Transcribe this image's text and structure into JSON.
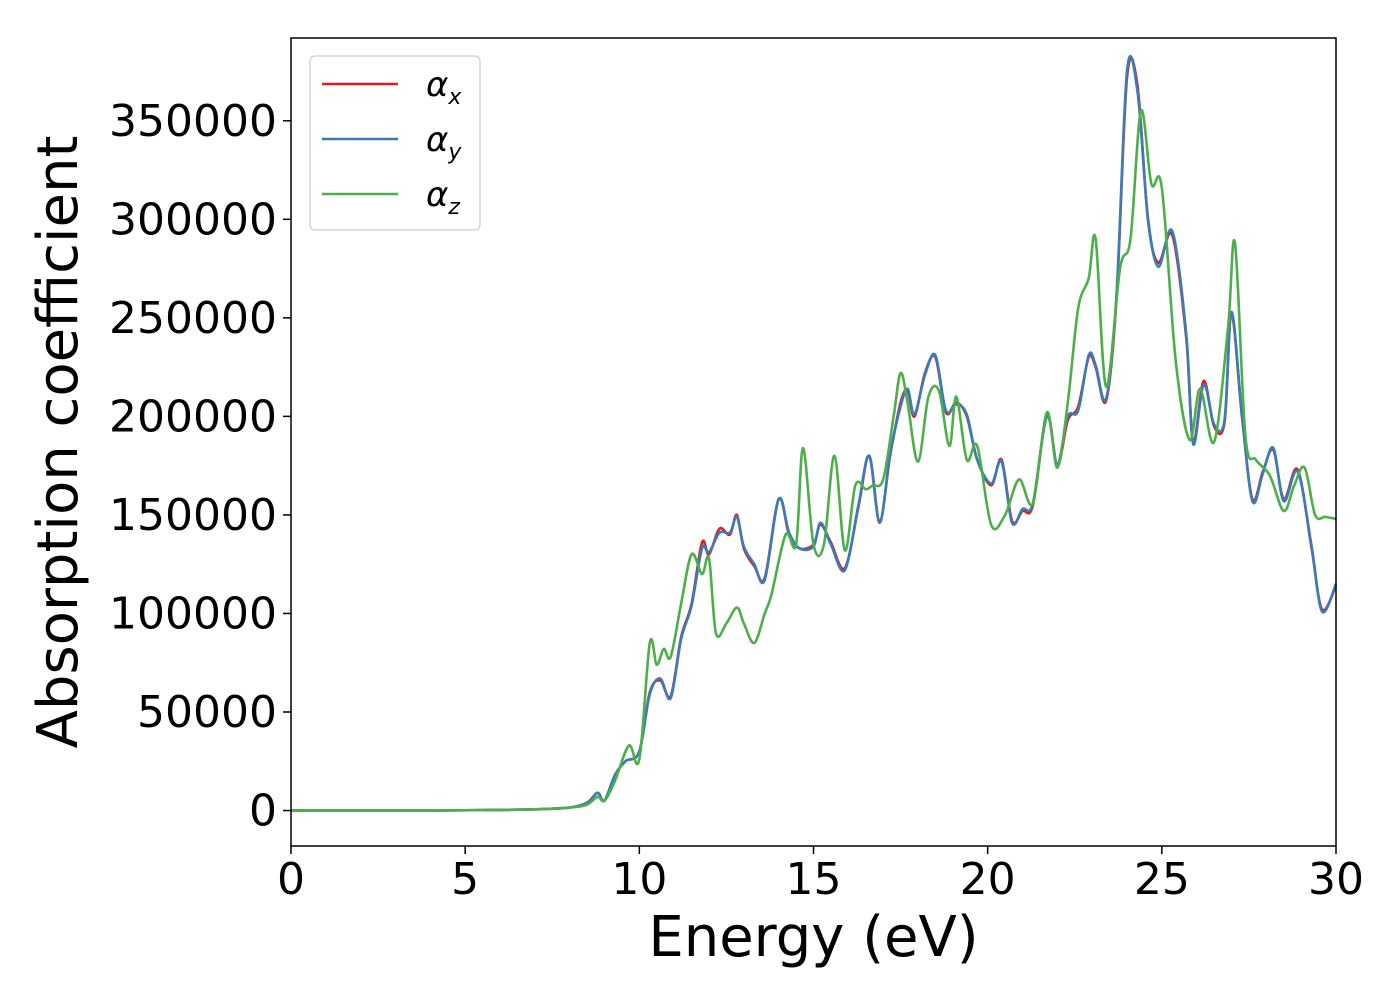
{
  "chart_data": {
    "type": "line",
    "title": "",
    "xlabel": "Energy (eV)",
    "ylabel": "Absorption coefficient",
    "xlim": [
      0,
      30
    ],
    "ylim": [
      -18000,
      392000
    ],
    "xticks": [
      0,
      5,
      10,
      15,
      20,
      25,
      30
    ],
    "xtick_labels": [
      "0",
      "5",
      "10",
      "15",
      "20",
      "25",
      "30"
    ],
    "yticks": [
      0,
      50000,
      100000,
      150000,
      200000,
      250000,
      300000,
      350000
    ],
    "ytick_labels": [
      "0",
      "50000",
      "100000",
      "150000",
      "200000",
      "250000",
      "300000",
      "350000"
    ],
    "grid": false,
    "legend_position": "top-left",
    "series": [
      {
        "name": "α",
        "subscript": "x",
        "color": "#e41a1c",
        "x": [
          0,
          2,
          4,
          6,
          7,
          8,
          8.5,
          8.8,
          9.0,
          9.3,
          9.6,
          10.0,
          10.3,
          10.6,
          10.9,
          11.2,
          11.5,
          11.8,
          12.0,
          12.3,
          12.6,
          12.8,
          13.0,
          13.3,
          13.6,
          14.0,
          14.3,
          14.6,
          15.0,
          15.2,
          15.5,
          15.9,
          16.3,
          16.6,
          16.9,
          17.2,
          17.5,
          17.7,
          17.9,
          18.2,
          18.5,
          18.8,
          19.1,
          19.4,
          19.7,
          20.1,
          20.4,
          20.7,
          21.0,
          21.3,
          21.7,
          22.0,
          22.3,
          22.6,
          22.9,
          23.1,
          23.4,
          23.7,
          24.0,
          24.3,
          24.6,
          24.9,
          25.3,
          25.7,
          25.9,
          26.2,
          26.5,
          26.8,
          27.0,
          27.3,
          27.6,
          27.9,
          28.2,
          28.5,
          28.9,
          29.3,
          29.6,
          30.0
        ],
        "values": [
          0,
          0,
          0,
          300,
          600,
          1500,
          4000,
          9000,
          5000,
          18000,
          25000,
          30000,
          60000,
          66000,
          58000,
          88000,
          105000,
          136000,
          130000,
          143000,
          140000,
          150000,
          133000,
          124000,
          118000,
          158000,
          140000,
          133000,
          135000,
          145000,
          136000,
          123000,
          155000,
          180000,
          147000,
          180000,
          207000,
          213000,
          200000,
          222000,
          230000,
          202000,
          207000,
          200000,
          178000,
          165000,
          178000,
          147000,
          152000,
          155000,
          201000,
          175000,
          198000,
          205000,
          230000,
          225000,
          208000,
          260000,
          372000,
          368000,
          300000,
          278000,
          292000,
          240000,
          187000,
          218000,
          195000,
          197000,
          252000,
          200000,
          158000,
          172000,
          183000,
          158000,
          173000,
          133000,
          102000,
          114000
        ]
      },
      {
        "name": "α",
        "subscript": "y",
        "color": "#377eb8",
        "x": [
          0,
          2,
          4,
          6,
          7,
          8,
          8.5,
          8.8,
          9.0,
          9.3,
          9.6,
          10.0,
          10.3,
          10.6,
          10.9,
          11.2,
          11.5,
          11.8,
          12.0,
          12.3,
          12.6,
          12.8,
          13.0,
          13.3,
          13.6,
          14.0,
          14.3,
          14.6,
          15.0,
          15.2,
          15.5,
          15.9,
          16.3,
          16.6,
          16.9,
          17.2,
          17.5,
          17.7,
          17.9,
          18.2,
          18.5,
          18.8,
          19.1,
          19.4,
          19.7,
          20.1,
          20.4,
          20.7,
          21.0,
          21.3,
          21.7,
          22.0,
          22.3,
          22.6,
          22.9,
          23.1,
          23.4,
          23.7,
          24.0,
          24.3,
          24.6,
          24.9,
          25.3,
          25.7,
          25.9,
          26.2,
          26.5,
          26.8,
          27.0,
          27.3,
          27.6,
          27.9,
          28.2,
          28.5,
          28.9,
          29.3,
          29.6,
          30.0
        ],
        "values": [
          0,
          0,
          0,
          300,
          600,
          1500,
          4000,
          9000,
          5000,
          18000,
          25000,
          30000,
          59000,
          67000,
          57000,
          87000,
          104000,
          133000,
          131000,
          141000,
          141000,
          149000,
          134000,
          125000,
          117000,
          158000,
          141000,
          133000,
          134000,
          146000,
          135000,
          122000,
          156000,
          180000,
          146000,
          181000,
          205000,
          214000,
          201000,
          221000,
          231000,
          203000,
          206000,
          201000,
          178000,
          166000,
          177000,
          146000,
          153000,
          156000,
          200000,
          176000,
          200000,
          203000,
          231000,
          226000,
          209000,
          262000,
          375000,
          365000,
          301000,
          276000,
          294000,
          242000,
          186000,
          216000,
          196000,
          198000,
          253000,
          201000,
          157000,
          171000,
          184000,
          157000,
          172000,
          134000,
          101000,
          115000
        ]
      },
      {
        "name": "α",
        "subscript": "z",
        "color": "#4daf4a",
        "x": [
          0,
          2,
          4,
          6,
          7,
          8,
          8.5,
          8.8,
          9.0,
          9.3,
          9.7,
          10.0,
          10.3,
          10.5,
          10.7,
          10.9,
          11.2,
          11.5,
          11.8,
          12.0,
          12.2,
          12.5,
          12.8,
          13.0,
          13.3,
          13.6,
          13.8,
          14.2,
          14.5,
          14.7,
          15.0,
          15.3,
          15.6,
          15.9,
          16.2,
          16.5,
          16.7,
          17.0,
          17.3,
          17.5,
          17.7,
          18.0,
          18.3,
          18.6,
          18.9,
          19.1,
          19.4,
          19.7,
          20.1,
          20.5,
          20.9,
          21.3,
          21.7,
          22.0,
          22.3,
          22.6,
          22.9,
          23.1,
          23.4,
          23.8,
          24.1,
          24.4,
          24.7,
          25.0,
          25.4,
          25.8,
          26.1,
          26.5,
          26.9,
          27.1,
          27.4,
          27.7,
          28.1,
          28.5,
          28.8,
          29.1,
          29.4,
          29.7,
          30.0
        ],
        "values": [
          0,
          0,
          0,
          300,
          600,
          1500,
          3000,
          7000,
          5000,
          15000,
          33000,
          26000,
          85000,
          74000,
          82000,
          78000,
          105000,
          130000,
          120000,
          128000,
          90000,
          95000,
          103000,
          95000,
          85000,
          100000,
          110000,
          140000,
          135000,
          184000,
          135000,
          135000,
          180000,
          132000,
          165000,
          163000,
          165000,
          168000,
          200000,
          222000,
          207000,
          177000,
          210000,
          213000,
          185000,
          210000,
          178000,
          185000,
          145000,
          150000,
          168000,
          156000,
          202000,
          174000,
          207000,
          255000,
          270000,
          290000,
          215000,
          275000,
          290000,
          355000,
          318000,
          316000,
          228000,
          188000,
          214000,
          187000,
          245000,
          288000,
          190000,
          178000,
          170000,
          152000,
          165000,
          174000,
          150000,
          149000,
          148000
        ]
      }
    ]
  }
}
